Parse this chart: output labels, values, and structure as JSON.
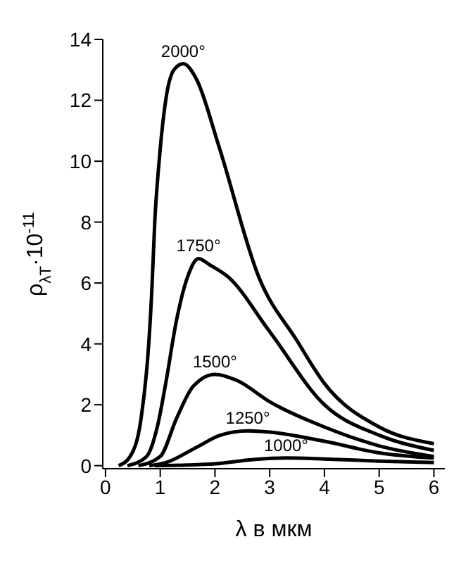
{
  "chart_data": {
    "type": "line",
    "xlabel": "λ в мкм",
    "ylabel": "ρ$_{λT}$·10$^{-11}$",
    "xlim": [
      -0.05,
      6.2
    ],
    "ylim": [
      -0.1,
      14
    ],
    "xticks": [
      0,
      1,
      2,
      3,
      4,
      5,
      6
    ],
    "yticks": [
      0,
      2,
      4,
      6,
      8,
      10,
      12,
      14
    ],
    "marker": "none",
    "line_style": "solid",
    "series": [
      {
        "name": "2000°",
        "color": "#000000",
        "x": [
          0.24,
          0.45,
          0.65,
          0.85,
          0.9,
          0.98,
          1.1,
          1.25,
          1.42,
          1.66,
          2.07,
          2.8,
          3.5,
          4,
          5,
          6
        ],
        "values": [
          0,
          0.3,
          1.55,
          5.9,
          8,
          10,
          12,
          13,
          13.2,
          12.7,
          10.5,
          6.2,
          4.1,
          2.7,
          1.27,
          0.72
        ]
      },
      {
        "name": "1750°",
        "color": "#000000",
        "x": [
          0.4,
          0.75,
          0.95,
          1.1,
          1.3,
          1.5,
          1.7,
          1.9,
          2.24,
          3,
          4,
          5,
          6
        ],
        "values": [
          0,
          0.3,
          1.3,
          2.7,
          4.8,
          6.2,
          6.8,
          6.6,
          6.2,
          4.4,
          2,
          1,
          0.5
        ]
      },
      {
        "name": "1500°",
        "color": "#000000",
        "x": [
          0.6,
          1,
          1.3,
          1.6,
          2,
          2.4,
          3,
          4,
          5,
          6
        ],
        "values": [
          0,
          0.3,
          1.56,
          2.6,
          3,
          2.8,
          2.1,
          1.27,
          0.65,
          0.3
        ]
      },
      {
        "name": "1250°",
        "color": "#000000",
        "x": [
          0.8,
          1.1,
          1.66,
          2.1,
          2.6,
          3,
          4,
          5,
          6
        ],
        "values": [
          0,
          0.1,
          0.6,
          1,
          1.14,
          1.1,
          0.8,
          0.42,
          0.25
        ]
      },
      {
        "name": "1000°",
        "color": "#000000",
        "x": [
          0.9,
          1.5,
          2,
          2.7,
          3.3,
          4,
          5,
          6
        ],
        "values": [
          0,
          0.02,
          0.06,
          0.2,
          0.25,
          0.22,
          0.15,
          0.1
        ]
      }
    ]
  }
}
